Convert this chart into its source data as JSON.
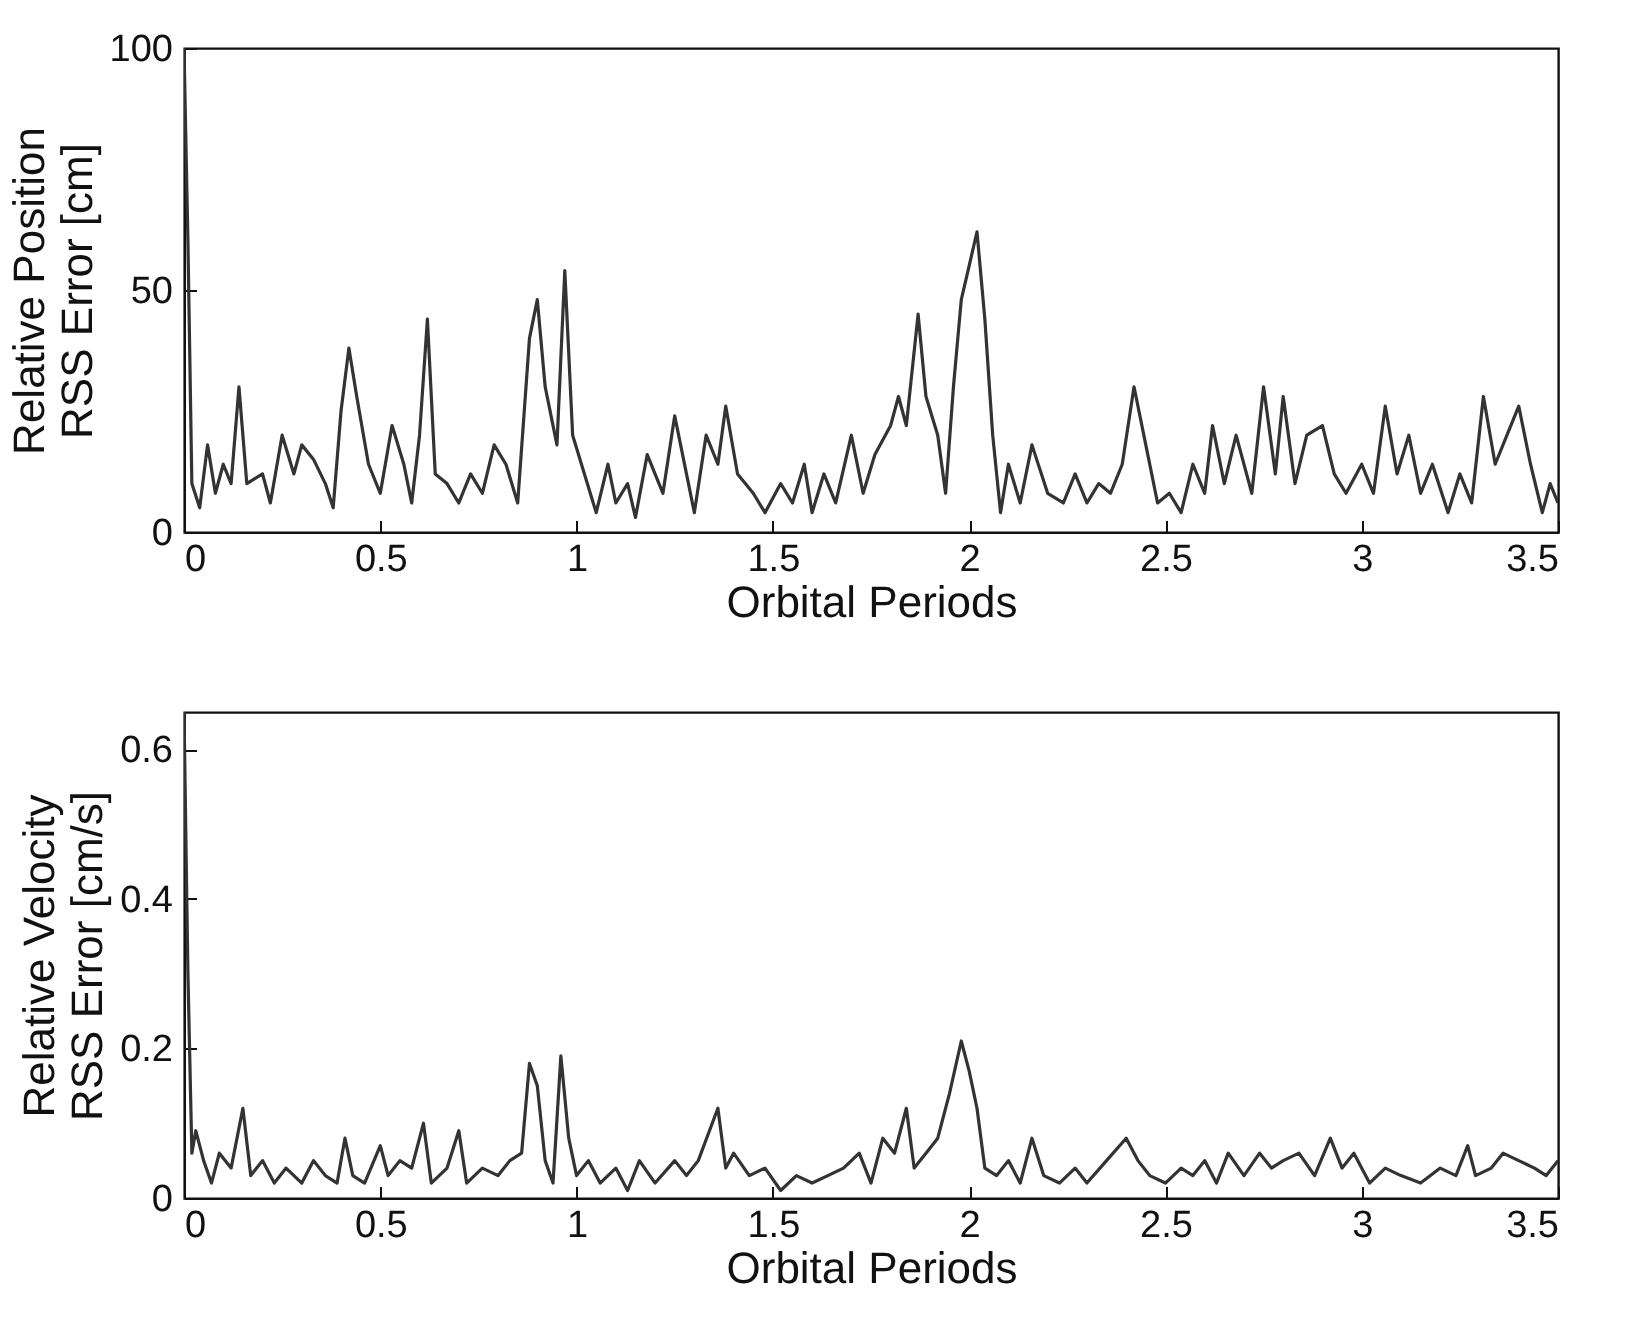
{
  "chart_data": [
    {
      "type": "line",
      "xlabel": "Orbital Periods",
      "ylabel": "Relative Position\nRSS Error [cm]",
      "xlim": [
        0,
        3.5
      ],
      "xticks": [
        0,
        0.5,
        1,
        1.5,
        2,
        2.5,
        3,
        3.5
      ],
      "ylim": [
        0,
        100
      ],
      "yticks": [
        0,
        50,
        100
      ],
      "grid": false,
      "series": [
        {
          "color": "#333333",
          "x": [
            0,
            0.01,
            0.02,
            0.04,
            0.06,
            0.08,
            0.1,
            0.12,
            0.14,
            0.16,
            0.2,
            0.22,
            0.25,
            0.28,
            0.3,
            0.33,
            0.36,
            0.38,
            0.4,
            0.42,
            0.44,
            0.47,
            0.5,
            0.53,
            0.56,
            0.58,
            0.6,
            0.62,
            0.64,
            0.67,
            0.7,
            0.73,
            0.76,
            0.79,
            0.82,
            0.85,
            0.88,
            0.9,
            0.92,
            0.95,
            0.97,
            0.99,
            1.02,
            1.05,
            1.08,
            1.1,
            1.13,
            1.15,
            1.18,
            1.22,
            1.25,
            1.28,
            1.3,
            1.33,
            1.36,
            1.38,
            1.41,
            1.45,
            1.48,
            1.52,
            1.55,
            1.58,
            1.6,
            1.63,
            1.66,
            1.7,
            1.73,
            1.76,
            1.8,
            1.82,
            1.84,
            1.87,
            1.89,
            1.92,
            1.94,
            1.96,
            1.98,
            2.0,
            2.02,
            2.04,
            2.06,
            2.08,
            2.1,
            2.13,
            2.16,
            2.2,
            2.24,
            2.27,
            2.3,
            2.33,
            2.36,
            2.39,
            2.42,
            2.45,
            2.48,
            2.51,
            2.54,
            2.57,
            2.6,
            2.62,
            2.65,
            2.68,
            2.72,
            2.75,
            2.78,
            2.8,
            2.83,
            2.86,
            2.9,
            2.93,
            2.96,
            3.0,
            3.03,
            3.06,
            3.09,
            3.12,
            3.15,
            3.18,
            3.22,
            3.25,
            3.28,
            3.31,
            3.34,
            3.37,
            3.4,
            3.43,
            3.46,
            3.48,
            3.5
          ],
          "values": [
            100,
            60,
            10,
            5,
            18,
            8,
            14,
            10,
            30,
            10,
            12,
            6,
            20,
            12,
            18,
            15,
            10,
            5,
            25,
            38,
            28,
            14,
            8,
            22,
            14,
            6,
            20,
            44,
            12,
            10,
            6,
            12,
            8,
            18,
            14,
            6,
            40,
            48,
            30,
            18,
            54,
            20,
            12,
            4,
            14,
            6,
            10,
            3,
            16,
            8,
            24,
            12,
            4,
            20,
            14,
            26,
            12,
            8,
            4,
            10,
            6,
            14,
            4,
            12,
            6,
            20,
            8,
            16,
            22,
            28,
            22,
            45,
            28,
            20,
            8,
            30,
            48,
            55,
            62,
            44,
            20,
            4,
            14,
            6,
            18,
            8,
            6,
            12,
            6,
            10,
            8,
            14,
            30,
            18,
            6,
            8,
            4,
            14,
            8,
            22,
            10,
            20,
            8,
            30,
            12,
            28,
            10,
            20,
            22,
            12,
            8,
            14,
            8,
            26,
            12,
            20,
            8,
            14,
            4,
            12,
            6,
            28,
            14,
            20,
            26,
            14,
            4,
            10,
            6
          ]
        }
      ]
    },
    {
      "type": "line",
      "xlabel": "Orbital Periods",
      "ylabel": "Relative Velocity\nRSS Error [cm/s]",
      "xlim": [
        0,
        3.5
      ],
      "xticks": [
        0,
        0.5,
        1,
        1.5,
        2,
        2.5,
        3,
        3.5
      ],
      "ylim": [
        0,
        0.65
      ],
      "yticks": [
        0,
        0.2,
        0.4,
        0.6
      ],
      "grid": false,
      "series": [
        {
          "color": "#333333",
          "x": [
            0,
            0.01,
            0.02,
            0.03,
            0.05,
            0.07,
            0.09,
            0.12,
            0.15,
            0.17,
            0.2,
            0.23,
            0.26,
            0.3,
            0.33,
            0.36,
            0.39,
            0.41,
            0.43,
            0.46,
            0.5,
            0.52,
            0.55,
            0.58,
            0.61,
            0.63,
            0.67,
            0.7,
            0.72,
            0.76,
            0.8,
            0.83,
            0.86,
            0.88,
            0.9,
            0.92,
            0.94,
            0.96,
            0.98,
            1.0,
            1.03,
            1.06,
            1.1,
            1.13,
            1.16,
            1.2,
            1.25,
            1.28,
            1.31,
            1.36,
            1.38,
            1.4,
            1.44,
            1.48,
            1.52,
            1.56,
            1.6,
            1.64,
            1.68,
            1.72,
            1.75,
            1.78,
            1.81,
            1.84,
            1.86,
            1.89,
            1.92,
            1.95,
            1.98,
            2.0,
            2.02,
            2.04,
            2.07,
            2.1,
            2.13,
            2.16,
            2.19,
            2.23,
            2.27,
            2.3,
            2.35,
            2.4,
            2.43,
            2.46,
            2.5,
            2.54,
            2.57,
            2.6,
            2.63,
            2.66,
            2.7,
            2.74,
            2.77,
            2.8,
            2.84,
            2.88,
            2.92,
            2.95,
            2.98,
            3.02,
            3.06,
            3.1,
            3.15,
            3.2,
            3.24,
            3.27,
            3.29,
            3.33,
            3.36,
            3.4,
            3.44,
            3.47,
            3.5
          ],
          "values": [
            0.65,
            0.3,
            0.06,
            0.09,
            0.05,
            0.02,
            0.06,
            0.04,
            0.12,
            0.03,
            0.05,
            0.02,
            0.04,
            0.02,
            0.05,
            0.03,
            0.02,
            0.08,
            0.03,
            0.02,
            0.07,
            0.03,
            0.05,
            0.04,
            0.1,
            0.02,
            0.04,
            0.09,
            0.02,
            0.04,
            0.03,
            0.05,
            0.06,
            0.18,
            0.15,
            0.05,
            0.02,
            0.19,
            0.08,
            0.03,
            0.05,
            0.02,
            0.04,
            0.01,
            0.05,
            0.02,
            0.05,
            0.03,
            0.05,
            0.12,
            0.04,
            0.06,
            0.03,
            0.04,
            0.01,
            0.03,
            0.02,
            0.03,
            0.04,
            0.06,
            0.02,
            0.08,
            0.06,
            0.12,
            0.04,
            0.06,
            0.08,
            0.14,
            0.21,
            0.17,
            0.12,
            0.04,
            0.03,
            0.05,
            0.02,
            0.08,
            0.03,
            0.02,
            0.04,
            0.02,
            0.05,
            0.08,
            0.05,
            0.03,
            0.02,
            0.04,
            0.03,
            0.05,
            0.02,
            0.06,
            0.03,
            0.06,
            0.04,
            0.05,
            0.06,
            0.03,
            0.08,
            0.04,
            0.06,
            0.02,
            0.04,
            0.03,
            0.02,
            0.04,
            0.03,
            0.07,
            0.03,
            0.04,
            0.06,
            0.05,
            0.04,
            0.03,
            0.05
          ]
        }
      ]
    }
  ]
}
